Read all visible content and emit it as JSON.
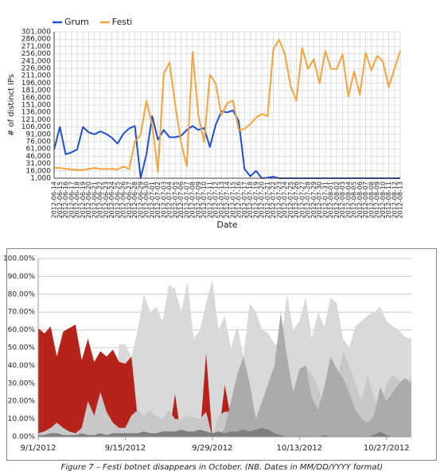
{
  "chart_data": [
    {
      "type": "line",
      "x_label": "Date",
      "y_label": "# of distinct IPs",
      "legend": "top-left",
      "grid": "both",
      "categories": [
        "2012-06-14",
        "2012-06-15",
        "2012-06-16",
        "2012-06-17",
        "2012-06-18",
        "2012-06-19",
        "2012-06-20",
        "2012-06-21",
        "2012-06-22",
        "2012-06-23",
        "2012-06-24",
        "2012-06-25",
        "2012-06-26",
        "2012-06-27",
        "2012-06-28",
        "2012-06-29",
        "2012-06-30",
        "2012-07-01",
        "2012-07-02",
        "2012-07-03",
        "2012-07-04",
        "2012-07-05",
        "2012-07-06",
        "2012-07-07",
        "2012-07-08",
        "2012-07-09",
        "2012-07-10",
        "2012-07-11",
        "2012-07-12",
        "2012-07-13",
        "2012-07-14",
        "2012-07-15",
        "2012-07-16",
        "2012-07-17",
        "2012-07-18",
        "2012-07-19",
        "2012-07-20",
        "2012-07-21",
        "2012-07-22",
        "2012-07-23",
        "2012-07-24",
        "2012-07-25",
        "2012-07-26",
        "2012-07-27",
        "2012-07-28",
        "2012-07-29",
        "2012-07-30",
        "2012-07-31",
        "2012-08-01",
        "2012-08-02",
        "2012-08-03",
        "2012-08-04",
        "2012-08-05",
        "2012-08-06",
        "2012-08-07",
        "2012-08-08",
        "2012-08-09",
        "2012-08-10",
        "2012-08-11",
        "2012-08-12",
        "2012-08-13"
      ],
      "series": [
        {
          "name": "Grum",
          "color": "#1f4fd1",
          "values": [
            60000,
            106000,
            50000,
            54000,
            60000,
            106000,
            95000,
            91000,
            97000,
            92000,
            84000,
            72000,
            92000,
            103000,
            108000,
            1000,
            50000,
            128000,
            80000,
            100000,
            85000,
            85000,
            88000,
            100000,
            108000,
            100000,
            104000,
            65000,
            110000,
            138000,
            136000,
            140000,
            118000,
            20000,
            5000,
            16000,
            1000,
            2000,
            4000,
            1000,
            1000,
            1000,
            1000,
            1000,
            1000,
            1000,
            1000,
            1000,
            1000,
            1000,
            1000,
            1000,
            1000,
            1000,
            1000,
            1000,
            1000,
            1000,
            1000,
            1000,
            1000
          ]
        },
        {
          "name": "Festi",
          "color": "#f5a33a",
          "values": [
            22000,
            22000,
            20000,
            19000,
            18000,
            18000,
            20000,
            22000,
            20000,
            20000,
            20000,
            19000,
            25000,
            20000,
            76000,
            90000,
            160000,
            110000,
            14000,
            215000,
            238000,
            150000,
            75000,
            25000,
            260000,
            130000,
            75000,
            213000,
            195000,
            130000,
            155000,
            160000,
            100000,
            102000,
            112000,
            125000,
            133000,
            128000,
            265000,
            285000,
            255000,
            190000,
            160000,
            268000,
            225000,
            245000,
            195000,
            262000,
            225000,
            225000,
            255000,
            168000,
            220000,
            172000,
            258000,
            222000,
            252000,
            240000,
            188000,
            225000,
            262000
          ]
        }
      ],
      "ylim": [
        1000,
        301000
      ],
      "yticks": [
        {
          "value": 1000,
          "label": "1,000"
        },
        {
          "value": 16000,
          "label": "16,000"
        },
        {
          "value": 31000,
          "label": "31,000"
        },
        {
          "value": 46000,
          "label": "46,000"
        },
        {
          "value": 61000,
          "label": "61,000"
        },
        {
          "value": 76000,
          "label": "76,000"
        },
        {
          "value": 91000,
          "label": "91,000"
        },
        {
          "value": 106000,
          "label": "106,000"
        },
        {
          "value": 121000,
          "label": "121,000"
        },
        {
          "value": 136000,
          "label": "136,000"
        },
        {
          "value": 151000,
          "label": "151,000"
        },
        {
          "value": 166000,
          "label": "166,000"
        },
        {
          "value": 181000,
          "label": "181,000"
        },
        {
          "value": 196000,
          "label": "196,000"
        },
        {
          "value": 211000,
          "label": "211,000"
        },
        {
          "value": 226000,
          "label": "226,000"
        },
        {
          "value": 241000,
          "label": "241,000"
        },
        {
          "value": 256000,
          "label": "256,000"
        },
        {
          "value": 271000,
          "label": "271,000"
        },
        {
          "value": 286000,
          "label": "286,000"
        },
        {
          "value": 301000,
          "label": "301,000"
        }
      ]
    },
    {
      "type": "area",
      "grid": "y",
      "categories": [
        "9/1/2012",
        null,
        null,
        null,
        null,
        null,
        null,
        null,
        null,
        null,
        null,
        null,
        null,
        null,
        "9/15/2012",
        null,
        null,
        null,
        null,
        null,
        null,
        null,
        null,
        null,
        null,
        null,
        null,
        null,
        "9/29/2012",
        null,
        null,
        null,
        null,
        null,
        null,
        null,
        null,
        null,
        null,
        null,
        null,
        null,
        "10/13/2012",
        null,
        null,
        null,
        null,
        null,
        null,
        null,
        null,
        null,
        null,
        null,
        null,
        null,
        "10/27/2012",
        null,
        null,
        null,
        null
      ],
      "series": [
        {
          "color": "#d9d9d9",
          "values": [
            0,
            0,
            0,
            0,
            0,
            0,
            0,
            0,
            0,
            0,
            0,
            0,
            0,
            52,
            52,
            45,
            60,
            80,
            70,
            73,
            65,
            85,
            83,
            70,
            87,
            55,
            60,
            75,
            88,
            60,
            68,
            50,
            62,
            45,
            75,
            70,
            60,
            58,
            52,
            52,
            80,
            60,
            65,
            78,
            55,
            70,
            62,
            78,
            75,
            55,
            50,
            62,
            65,
            68,
            70,
            73,
            65,
            62,
            60,
            56,
            55
          ]
        },
        {
          "color": "#b5231b",
          "values": [
            61,
            58,
            62,
            45,
            59,
            61,
            63,
            43,
            55,
            42,
            48,
            45,
            49,
            42,
            41,
            45,
            10,
            0,
            0,
            0,
            0,
            0,
            24,
            0,
            0,
            10,
            0,
            47,
            0,
            0,
            29,
            10,
            34,
            0,
            0,
            0,
            0,
            0,
            0,
            0,
            0,
            0,
            0,
            0,
            0,
            0,
            0,
            0,
            0,
            0,
            0,
            0,
            0,
            0,
            0,
            0,
            0,
            0,
            0,
            0,
            0
          ]
        },
        {
          "color": "#c8c8c8",
          "values": [
            2,
            3,
            5,
            8,
            5,
            3,
            2,
            5,
            20,
            12,
            25,
            14,
            8,
            5,
            5,
            12,
            15,
            12,
            15,
            12,
            10,
            15,
            10,
            10,
            12,
            11,
            10,
            14,
            0,
            12,
            14,
            14,
            8,
            0,
            0,
            0,
            0,
            5,
            10,
            8,
            15,
            25,
            30,
            40,
            35,
            28,
            15,
            20,
            30,
            48,
            40,
            30,
            20,
            35,
            22,
            15,
            30,
            35,
            32,
            25,
            34
          ]
        },
        {
          "color": "#ababab",
          "values": [
            0,
            0,
            0,
            0,
            0,
            0,
            0,
            0,
            0,
            0,
            0,
            0,
            0,
            0,
            0,
            0,
            0,
            0,
            0,
            0,
            0,
            0,
            0,
            0,
            0,
            0,
            0,
            0,
            0,
            0,
            5,
            20,
            35,
            45,
            30,
            10,
            20,
            30,
            40,
            70,
            45,
            25,
            38,
            40,
            22,
            15,
            28,
            45,
            38,
            33,
            25,
            15,
            10,
            8,
            12,
            28,
            20,
            25,
            30,
            33,
            30
          ]
        },
        {
          "color": "#7f7f7f",
          "values": [
            1,
            1,
            2,
            2,
            1,
            1,
            1,
            2,
            1,
            1,
            2,
            1,
            2,
            2,
            2,
            2,
            2,
            3,
            2,
            2,
            3,
            3,
            3,
            4,
            3,
            3,
            4,
            3,
            2,
            3,
            2,
            3,
            3,
            4,
            3,
            4,
            5,
            4,
            2,
            1,
            0,
            0,
            0,
            0,
            0,
            0,
            1,
            0,
            0,
            0,
            0,
            0,
            0,
            0,
            1,
            3,
            1,
            0,
            0,
            0,
            0
          ]
        }
      ],
      "ylim": [
        0,
        100
      ],
      "yticks": [
        {
          "value": 0,
          "label": "0.00%"
        },
        {
          "value": 10,
          "label": "10.00%"
        },
        {
          "value": 20,
          "label": "20.00%"
        },
        {
          "value": 30,
          "label": "30.00%"
        },
        {
          "value": 40,
          "label": "40.00%"
        },
        {
          "value": 50,
          "label": "50.00%"
        },
        {
          "value": 60,
          "label": "60.00%"
        },
        {
          "value": 70,
          "label": "70.00%"
        },
        {
          "value": 80,
          "label": "80.00%"
        },
        {
          "value": 90,
          "label": "90.00%"
        },
        {
          "value": 100,
          "label": "100.00%"
        }
      ]
    }
  ],
  "caption": "Figure 7 – Festi botnet disappears in October. (NB. Dates in MM/DD/YYYY format)"
}
